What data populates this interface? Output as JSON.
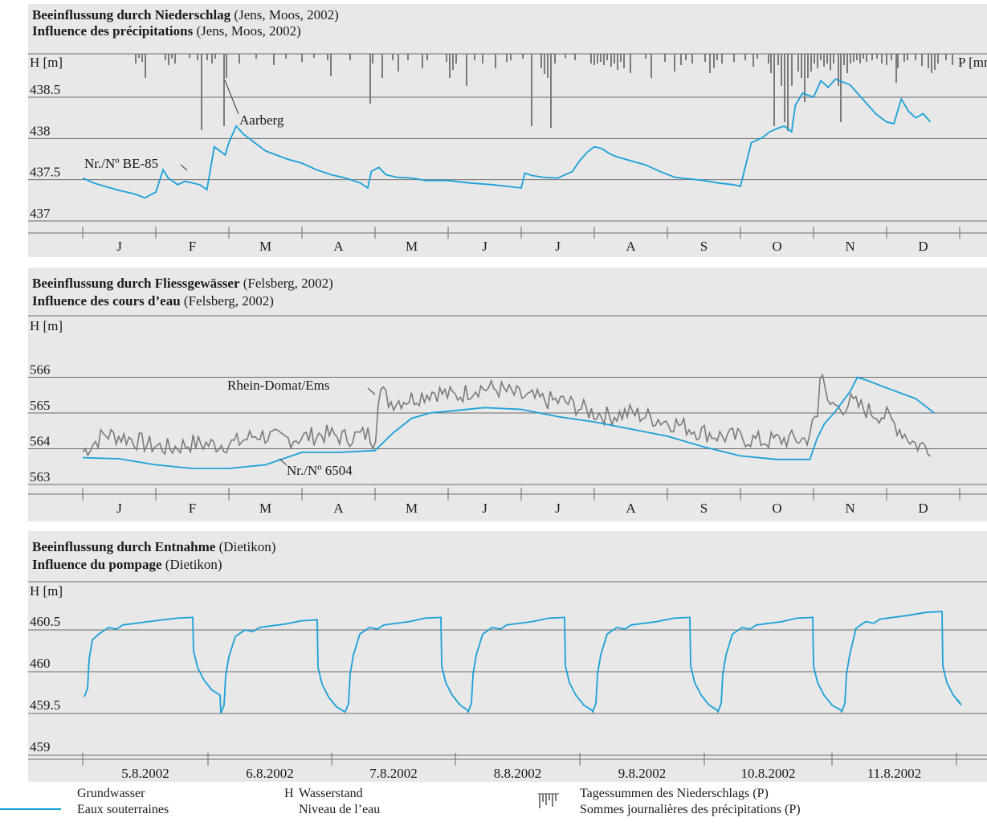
{
  "colors": {
    "groundwater": "#1aa0d8",
    "surface": "#7a7a7a",
    "precip": "#7a7a7a",
    "grid": "#6a6a6a"
  },
  "panels": [
    {
      "title_bold_de": "Beeinflussung durch Niederschlag",
      "title_rest_de": " (Jens, Moos, 2002)",
      "title_bold_fr": "Influence des précipitations",
      "title_rest_fr": " (Jens, Moos, 2002)",
      "ylabel": "H [m]",
      "y2label": "P [mm]"
    },
    {
      "title_bold_de": "Beeinflussung durch Fliessgewässer",
      "title_rest_de": " (Felsberg, 2002)",
      "title_bold_fr": "Influence des cours d’eau",
      "title_rest_fr": " (Felsberg, 2002)",
      "ylabel": "H [m]"
    },
    {
      "title_bold_de": "Beeinflussung durch Entnahme",
      "title_rest_de": " (Dietikon)",
      "title_bold_fr": "Influence du pompage",
      "title_rest_fr": " (Dietikon)",
      "ylabel": "H [m]"
    }
  ],
  "legend": {
    "groundwater_de": "Grundwasser",
    "groundwater_fr": "Eaux souterraines",
    "h_symbol": "H",
    "h_de": "Wasserstand",
    "h_fr": "Niveau de l’eau",
    "precip_de": "Tagessummen des Niederschlags (P)",
    "precip_fr": "Sommes journalières des précipitations (P)"
  },
  "chart_data": [
    {
      "type": "line",
      "title": "Beeinflussung durch Niederschlag (Jens, Moos, 2002) / Influence des précipitations (Jens, Moos, 2002)",
      "ylabel": "H [m]",
      "y2label": "P [mm]",
      "yticks": [
        437,
        437.5,
        438,
        438.5
      ],
      "ylim": [
        437,
        438.9
      ],
      "x_categories": [
        "J",
        "F",
        "M",
        "A",
        "M",
        "J",
        "J",
        "A",
        "S",
        "O",
        "N",
        "D"
      ],
      "annotations": [
        "Aarberg",
        "Nr./Nº BE-85"
      ],
      "series": [
        {
          "name": "Nr./Nº BE-85",
          "x": [
            0.0,
            0.15,
            0.3,
            0.5,
            0.7,
            0.85,
            1.0,
            1.1,
            1.17,
            1.25,
            1.3,
            1.4,
            1.5,
            1.6,
            1.7,
            1.8,
            1.95,
            2.0,
            2.1,
            2.2,
            2.25,
            2.35,
            2.5,
            2.65,
            2.8,
            3.0,
            3.2,
            3.4,
            3.6,
            3.8,
            3.9,
            3.95,
            4.05,
            4.15,
            4.3,
            4.5,
            4.7,
            5.0,
            5.3,
            5.6,
            5.8,
            6.0,
            6.05,
            6.15,
            6.3,
            6.5,
            6.7,
            6.8,
            6.9,
            7.0,
            7.1,
            7.2,
            7.3,
            7.5,
            7.7,
            7.9,
            8.1,
            8.3,
            8.5,
            8.7,
            8.9,
            9.0,
            9.05,
            9.15,
            9.3,
            9.4,
            9.5,
            9.6,
            9.7,
            9.75,
            9.85,
            10.0,
            10.1,
            10.2,
            10.3,
            10.5,
            10.7,
            10.85,
            11.0,
            11.1,
            11.2,
            11.3,
            11.4,
            11.5,
            11.6
          ],
          "y": [
            437.52,
            437.46,
            437.42,
            437.37,
            437.33,
            437.28,
            437.35,
            437.62,
            437.52,
            437.47,
            437.44,
            437.48,
            437.46,
            437.44,
            437.38,
            437.9,
            437.8,
            437.95,
            438.15,
            438.05,
            438.02,
            437.95,
            437.85,
            437.8,
            437.75,
            437.7,
            437.62,
            437.56,
            437.52,
            437.46,
            437.4,
            437.6,
            437.65,
            437.56,
            437.53,
            437.52,
            437.49,
            437.49,
            437.46,
            437.44,
            437.42,
            437.4,
            437.58,
            437.55,
            437.53,
            437.52,
            437.6,
            437.73,
            437.83,
            437.9,
            437.88,
            437.82,
            437.78,
            437.73,
            437.68,
            437.6,
            437.53,
            437.51,
            437.49,
            437.46,
            437.44,
            437.42,
            437.6,
            437.95,
            438.01,
            438.08,
            438.12,
            438.15,
            438.08,
            438.4,
            438.55,
            438.5,
            438.7,
            438.62,
            438.72,
            438.65,
            438.45,
            438.3,
            438.2,
            438.18,
            438.48,
            438.33,
            438.25,
            438.3,
            438.2
          ]
        }
      ]
    },
    {
      "type": "line",
      "title": "Beeinflussung durch Fliessgewässer (Felsberg, 2002) / Influence des cours d’eau (Felsberg, 2002)",
      "ylabel": "H [m]",
      "yticks": [
        563,
        564,
        565,
        566
      ],
      "ylim": [
        562.6,
        566.6
      ],
      "x_categories": [
        "J",
        "F",
        "M",
        "A",
        "M",
        "J",
        "J",
        "A",
        "S",
        "O",
        "N",
        "D"
      ],
      "series": [
        {
          "name": "Nr./Nº 6504",
          "x": [
            0.0,
            0.5,
            1.0,
            1.5,
            2.0,
            2.5,
            3.0,
            3.5,
            4.0,
            4.25,
            4.5,
            4.75,
            5.0,
            5.5,
            6.0,
            6.5,
            7.0,
            7.5,
            8.0,
            8.5,
            9.0,
            9.5,
            9.95,
            10.05,
            10.15,
            10.3,
            10.5,
            10.6,
            10.75,
            11.0,
            11.4,
            11.65
          ],
          "y": [
            563.75,
            563.72,
            563.55,
            563.45,
            563.45,
            563.55,
            563.9,
            563.9,
            563.95,
            564.45,
            564.85,
            565.0,
            565.05,
            565.15,
            565.1,
            564.9,
            564.75,
            564.55,
            564.35,
            564.05,
            563.8,
            563.7,
            563.7,
            564.3,
            564.7,
            565.05,
            565.6,
            566.0,
            565.9,
            565.7,
            565.4,
            565.0
          ]
        },
        {
          "name": "Rhein-Domat/Ems",
          "x": [
            0.0,
            0.3,
            0.6,
            0.9,
            1.2,
            1.5,
            1.8,
            2.1,
            2.4,
            2.7,
            3.0,
            3.3,
            3.6,
            3.9,
            4.0,
            4.05,
            4.2,
            4.5,
            4.8,
            5.1,
            5.4,
            5.7,
            6.0,
            6.3,
            6.6,
            6.9,
            7.2,
            7.5,
            7.8,
            8.1,
            8.4,
            8.7,
            9.0,
            9.3,
            9.6,
            9.9,
            10.05,
            10.1,
            10.15,
            10.2,
            10.35,
            10.5,
            10.8,
            11.0,
            11.2,
            11.4,
            11.6
          ],
          "y": [
            563.8,
            564.3,
            564.2,
            564.0,
            563.9,
            564.05,
            564.0,
            564.05,
            564.3,
            564.15,
            564.2,
            564.3,
            564.2,
            564.3,
            564.1,
            565.6,
            565.2,
            565.3,
            565.5,
            565.35,
            565.6,
            565.55,
            565.35,
            565.25,
            565.2,
            564.95,
            564.8,
            564.9,
            564.75,
            564.6,
            564.4,
            564.25,
            564.2,
            564.1,
            564.15,
            564.15,
            564.8,
            566.3,
            565.8,
            565.3,
            565.0,
            565.2,
            564.9,
            564.8,
            564.4,
            564.0,
            563.95
          ]
        }
      ]
    },
    {
      "type": "line",
      "title": "Beeinflussung durch Entnahme (Dietikon) / Influence du pompage (Dietikon)",
      "ylabel": "H [m]",
      "yticks": [
        459,
        459.5,
        460,
        460.5
      ],
      "ylim": [
        458.85,
        460.95
      ],
      "x_categories": [
        "5.8.2002",
        "6.8.2002",
        "7.8.2002",
        "8.8.2002",
        "9.8.2002",
        "10.8.2002",
        "11.8.2002"
      ],
      "series": [
        {
          "name": "Grundwasser",
          "cycle_min": [
            459.7,
            459.5,
            459.52,
            459.52,
            459.52,
            459.52,
            459.52
          ],
          "cycle_max": [
            460.65,
            460.62,
            460.65,
            460.65,
            460.65,
            460.65,
            460.72
          ],
          "cycle_end": [
            459.67
          ]
        }
      ]
    }
  ]
}
